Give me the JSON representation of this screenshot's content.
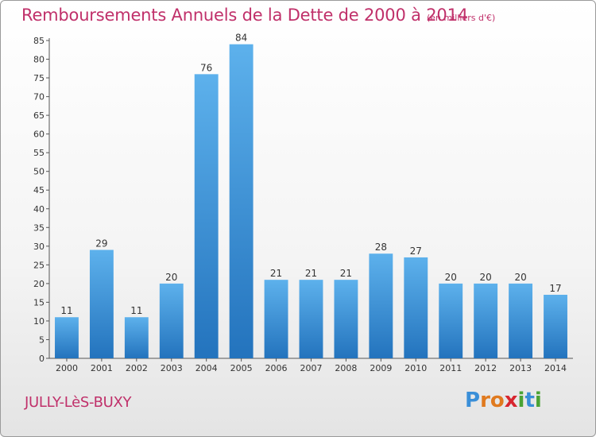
{
  "chart_data": {
    "type": "bar",
    "title": "Remboursements Annuels de la Dette de 2000 à 2014",
    "subtitle": "(en milliers d'€)",
    "categories": [
      "2000",
      "2001",
      "2002",
      "2003",
      "2004",
      "2005",
      "2006",
      "2007",
      "2008",
      "2009",
      "2010",
      "2011",
      "2012",
      "2013",
      "2014"
    ],
    "values": [
      11,
      29,
      11,
      20,
      76,
      84,
      21,
      21,
      21,
      28,
      27,
      20,
      20,
      20,
      17
    ],
    "ylim": [
      0,
      85
    ],
    "yticks": [
      0,
      5,
      10,
      15,
      20,
      25,
      30,
      35,
      40,
      45,
      50,
      55,
      60,
      65,
      70,
      75,
      80,
      85
    ],
    "grid": false,
    "bar_color": "#3a8fd8"
  },
  "footer": {
    "commune": "JULLY-LèS-BUXY",
    "logo_letters": [
      "P",
      "r",
      "o",
      "x",
      "i",
      "t",
      "i"
    ],
    "logo_colors": [
      "#3a8fd8",
      "#e07a1f",
      "#e07a1f",
      "#d7262f",
      "#4aa335",
      "#3a8fd8",
      "#4aa335"
    ]
  }
}
